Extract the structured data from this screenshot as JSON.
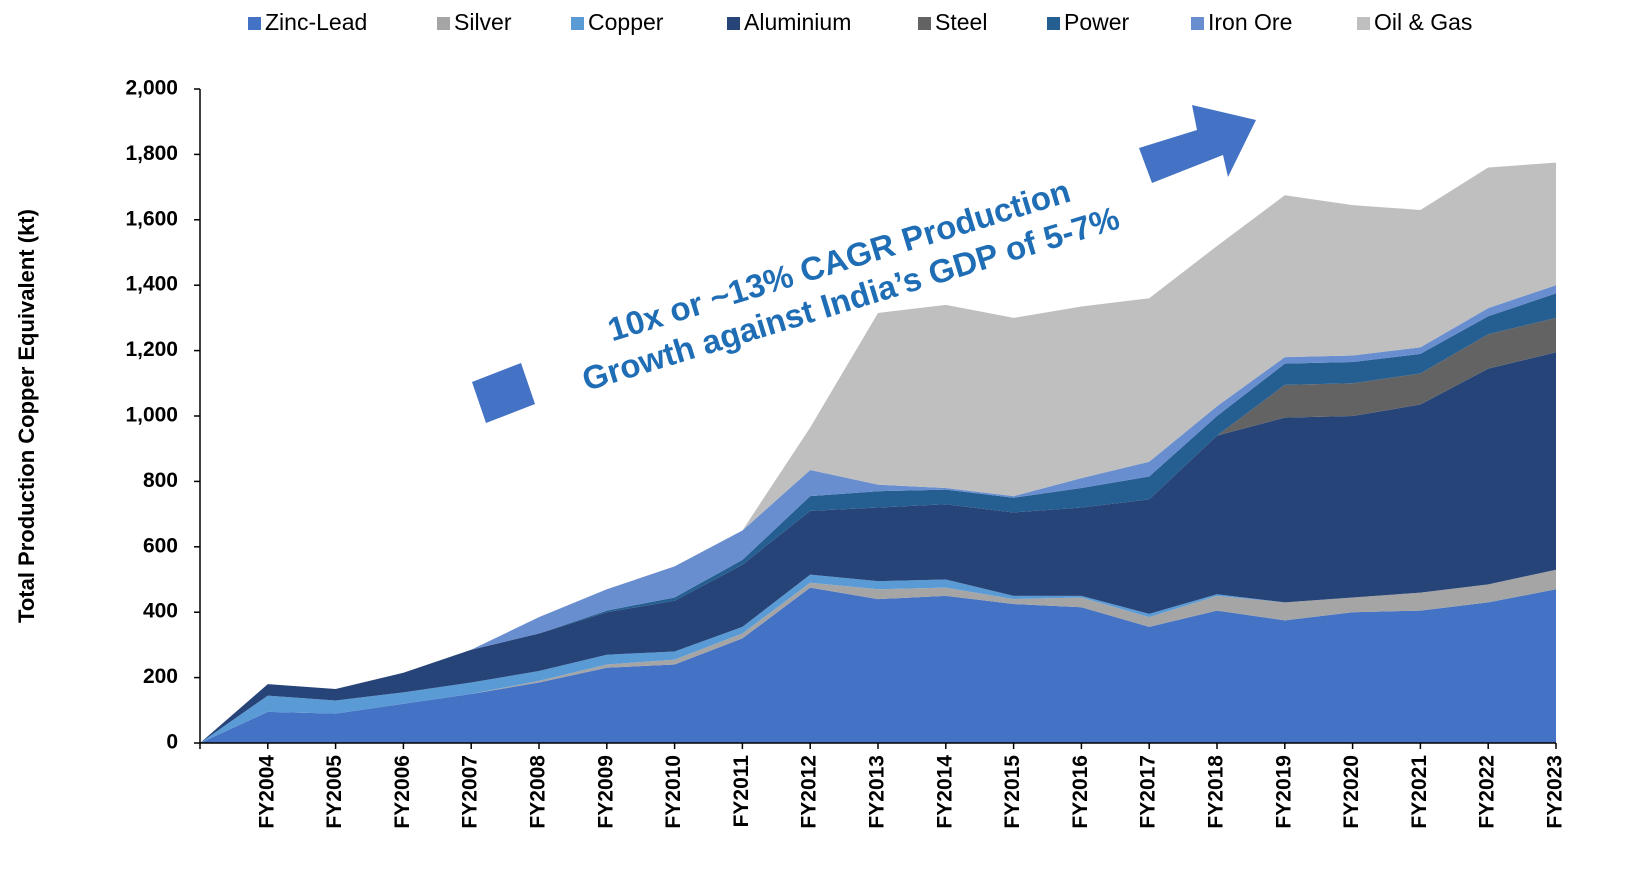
{
  "chart_data": {
    "type": "stacked_area",
    "y_label": "Total Production Copper Equivalent (kt)",
    "annotation": [
      "10x or ~13% CAGR Production",
      "Growth against India’s GDP of 5-7%"
    ],
    "categories": [
      null,
      "FY2004",
      "FY2005",
      "FY2006",
      "FY2007",
      "FY2008",
      "FY2009",
      "FY2010",
      "FY2011",
      "FY2012",
      "FY2013",
      "FY2014",
      "FY2015",
      "FY2016",
      "FY2017",
      "FY2018",
      "FY2019",
      "FY2020",
      "FY2021",
      "FY2022",
      "FY2023"
    ],
    "series": [
      {
        "name": "Zinc-Lead",
        "color": "#4472c4",
        "values": [
          0,
          95,
          90,
          120,
          150,
          185,
          230,
          240,
          320,
          475,
          440,
          450,
          425,
          415,
          355,
          405,
          375,
          400,
          405,
          430,
          470
        ]
      },
      {
        "name": "Silver",
        "color": "#a5a5a5",
        "values": [
          0,
          0,
          0,
          0,
          0,
          5,
          10,
          15,
          15,
          15,
          30,
          25,
          15,
          30,
          30,
          45,
          55,
          45,
          55,
          55,
          60
        ]
      },
      {
        "name": "Copper",
        "color": "#5b9bd5",
        "values": [
          0,
          50,
          40,
          35,
          35,
          30,
          30,
          25,
          20,
          25,
          25,
          25,
          10,
          5,
          10,
          5,
          0,
          0,
          0,
          0,
          0
        ]
      },
      {
        "name": "Aluminium",
        "color": "#264478",
        "values": [
          0,
          35,
          35,
          60,
          100,
          115,
          130,
          155,
          190,
          195,
          225,
          230,
          255,
          270,
          350,
          485,
          565,
          555,
          575,
          660,
          665
        ]
      },
      {
        "name": "Steel",
        "color": "#636363",
        "values": [
          0,
          0,
          0,
          0,
          0,
          0,
          0,
          0,
          0,
          0,
          0,
          0,
          0,
          0,
          0,
          0,
          100,
          100,
          95,
          105,
          105
        ]
      },
      {
        "name": "Power",
        "color": "#255e91",
        "values": [
          0,
          0,
          0,
          0,
          0,
          0,
          5,
          10,
          15,
          45,
          50,
          45,
          45,
          60,
          70,
          60,
          65,
          65,
          60,
          55,
          75
        ]
      },
      {
        "name": "Iron Ore",
        "color": "#698ed0",
        "values": [
          0,
          0,
          0,
          0,
          0,
          50,
          65,
          95,
          90,
          80,
          20,
          5,
          5,
          30,
          45,
          30,
          20,
          20,
          20,
          25,
          25
        ]
      },
      {
        "name": "Oil & Gas",
        "color": "#bfbfbf",
        "values": [
          0,
          0,
          0,
          0,
          0,
          0,
          0,
          0,
          0,
          130,
          525,
          560,
          545,
          525,
          500,
          490,
          495,
          460,
          420,
          430,
          375
        ]
      }
    ],
    "ylim": [
      0,
      2000
    ],
    "yticks": [
      0,
      200,
      400,
      600,
      800,
      {
        "value": 1000,
        "label": "1,000"
      },
      {
        "value": 1200,
        "label": "1,200"
      },
      {
        "value": 1400,
        "label": "1,400"
      },
      {
        "value": 1600,
        "label": "1,600"
      },
      {
        "value": 1800,
        "label": "1,800"
      },
      {
        "value": 2000,
        "label": "2,000"
      }
    ],
    "legend": "top"
  }
}
